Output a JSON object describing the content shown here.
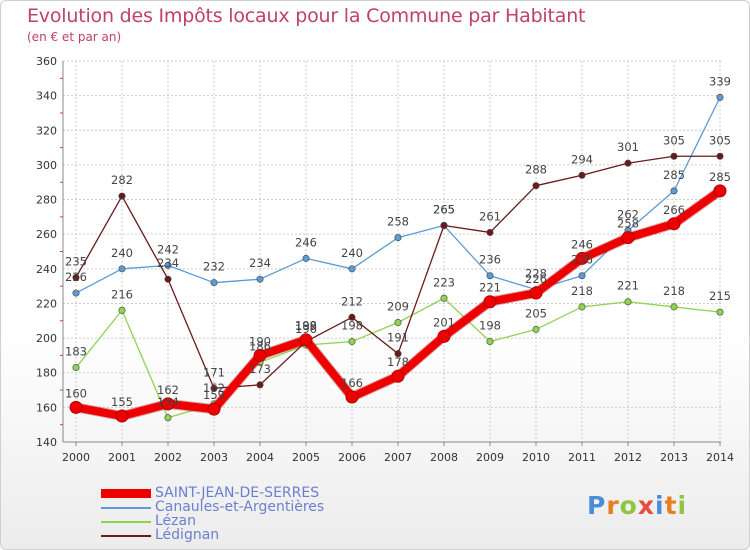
{
  "header": {
    "title": "Evolution des Impôts locaux pour la Commune par Habitant",
    "subtitle": "(en € et par an)"
  },
  "chart_data": {
    "type": "line",
    "title": "Evolution des Impôts locaux pour la Commune par Habitant",
    "subtitle": "(en € et par an)",
    "xlabel": "",
    "ylabel": "",
    "x": [
      "2000",
      "2001",
      "2002",
      "2003",
      "2004",
      "2005",
      "2006",
      "2007",
      "2008",
      "2009",
      "2010",
      "2011",
      "2012",
      "2013",
      "2014"
    ],
    "ylim": [
      140,
      360
    ],
    "yticks": [
      140,
      160,
      180,
      200,
      220,
      240,
      260,
      280,
      300,
      320,
      340,
      360
    ],
    "grid": true,
    "legend_position": "bottom-left",
    "series": [
      {
        "name": "SAINT-JEAN-DE-SERRES",
        "color": "#ee0000",
        "values": [
          160,
          155,
          162,
          159,
          190,
          199,
          166,
          178,
          201,
          221,
          226,
          246,
          258,
          266,
          285
        ]
      },
      {
        "name": "Canaules-et-Argentières",
        "color": "#5b9bd5",
        "values": [
          226,
          240,
          242,
          232,
          234,
          246,
          240,
          258,
          265,
          236,
          228,
          236,
          262,
          285,
          339
        ]
      },
      {
        "name": "Lézan",
        "color": "#8fd44f",
        "values": [
          183,
          216,
          154,
          162,
          186,
          196,
          198,
          209,
          223,
          198,
          205,
          218,
          221,
          218,
          215
        ]
      },
      {
        "name": "Lédignan",
        "color": "#6b1a1a",
        "values": [
          235,
          282,
          234,
          171,
          173,
          198,
          212,
          191,
          265,
          261,
          288,
          294,
          301,
          305,
          305
        ]
      }
    ]
  },
  "legend": {
    "items": [
      {
        "label": "SAINT-JEAN-DE-SERRES"
      },
      {
        "label": "Canaules-et-Argentières"
      },
      {
        "label": "Lézan"
      },
      {
        "label": "Lédignan"
      }
    ]
  },
  "logo": {
    "letters": [
      "P",
      "r",
      "o",
      "x",
      "i",
      "t",
      "i"
    ],
    "colors": [
      "#4a8ed8",
      "#e67e22",
      "#8dc63f",
      "#e74c3c",
      "#4a8ed8",
      "#e67e22",
      "#8dc63f"
    ]
  }
}
